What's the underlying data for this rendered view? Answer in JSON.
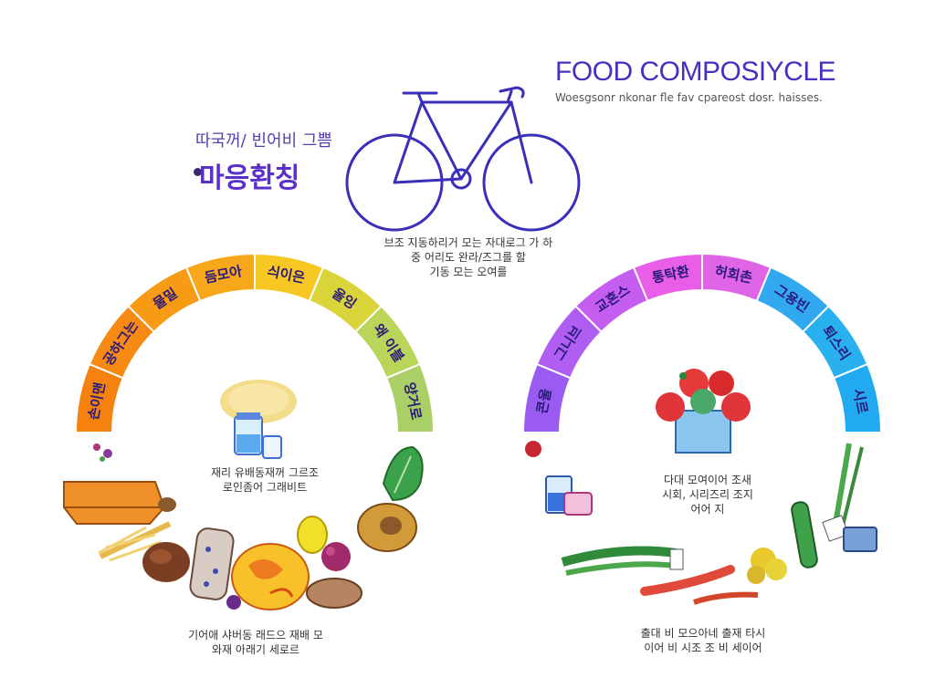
{
  "header": {
    "title": "FOOD COMPOSIYCLE",
    "subtitle": "Woesgsonr nkonar fle fav cpareost dosr. haisses.",
    "korean_sub": "따국꺼/ 빈어비 그쁨",
    "korean_title": "마응환칭"
  },
  "captions": {
    "bike": "브조 지동하리거 모는 자대로그 가 하\n중 어리도 완라/즈그를 할\n기동 모는 오여를",
    "left_mid": "재리 유배동재꺼 그르조\n로인좀어 그래비트",
    "left_bottom": "기어애 샤버동 래드으 재배 모\n와재 아래기 세로르",
    "right_mid": "다대 모여이어 조새\n시회, 시리즈리 조지\n어어 지",
    "right_bottom": "출대 비 모으아네 출재 타시\n이어 비 시조 조 비 세이어"
  },
  "left_arc": {
    "segments": [
      {
        "label": "손이맨",
        "color": "#f5820f"
      },
      {
        "label": "공하그는",
        "color": "#f68a12"
      },
      {
        "label": "물밀",
        "color": "#f79a14"
      },
      {
        "label": "듬모아",
        "color": "#f7a81a"
      },
      {
        "label": "싀이은",
        "color": "#f7c823"
      },
      {
        "label": "울잉",
        "color": "#d8d43a"
      },
      {
        "label": "왜 이블",
        "color": "#b9d55a"
      },
      {
        "label": "양거로",
        "color": "#a9cf66"
      }
    ]
  },
  "right_arc": {
    "segments": [
      {
        "label": "콘울",
        "color": "#9a5cf0"
      },
      {
        "label": "그니브",
        "color": "#b05ef2"
      },
      {
        "label": "교혼스",
        "color": "#c45df0"
      },
      {
        "label": "통탁환",
        "color": "#e85ee8"
      },
      {
        "label": "허회촌",
        "color": "#e064e6"
      },
      {
        "label": "그용빈",
        "color": "#32a8f0"
      },
      {
        "label": "퇴스리",
        "color": "#28b0ef"
      },
      {
        "label": "시르",
        "color": "#22aaf0"
      }
    ]
  },
  "colors": {
    "accent": "#4a2fbf",
    "bike": "#3a2fb8"
  },
  "icons": [
    "bicycle-icon",
    "jar-icon",
    "grain-icon",
    "bread-icon",
    "wheat-icon",
    "potato-icon",
    "tofu-icon",
    "cheese-icon",
    "lemon-icon",
    "plum-icon",
    "avocado-icon",
    "lettuce-icon",
    "strawberry-box-icon",
    "cup-icon",
    "scallion-icon",
    "shrimp-icon",
    "broccoli-icon",
    "cucumber-icon",
    "green-onion-icon",
    "tin-icon"
  ]
}
